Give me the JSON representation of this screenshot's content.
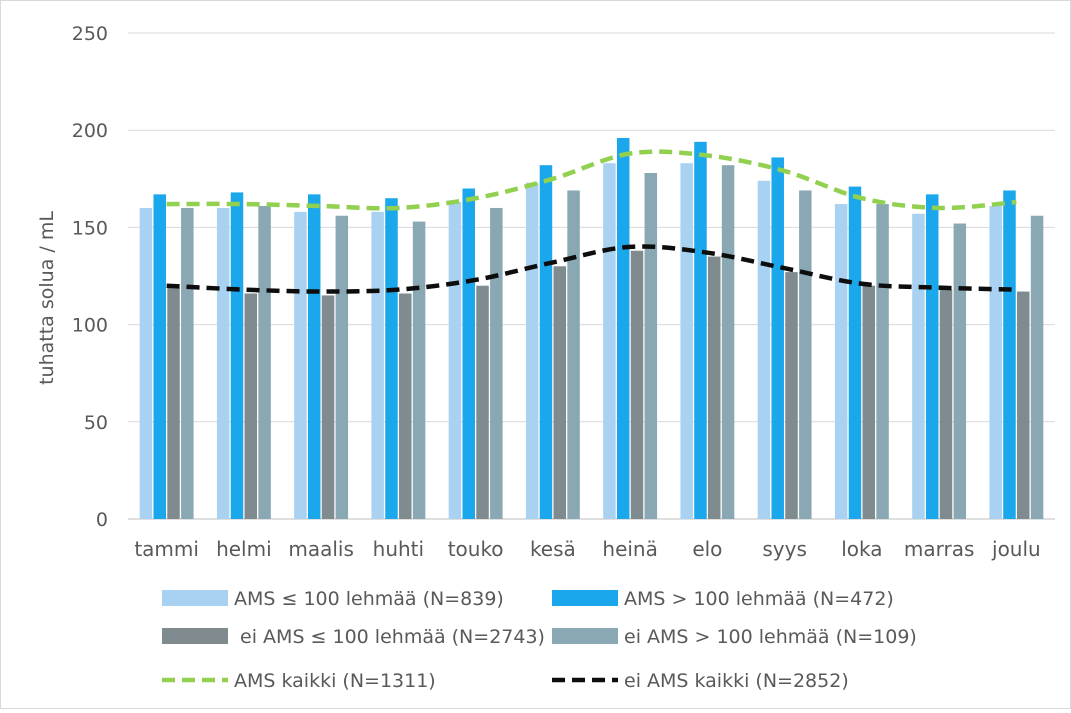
{
  "chart_data": {
    "type": "bar",
    "title": "",
    "xlabel": "",
    "ylabel": "tuhatta solua / mL",
    "ylim": [
      0,
      250
    ],
    "yticks": [
      0,
      50,
      100,
      150,
      200,
      250
    ],
    "grid": true,
    "legend_position": "bottom",
    "categories": [
      "tammi",
      "helmi",
      "maalis",
      "huhti",
      "touko",
      "kesä",
      "heinä",
      "elo",
      "syys",
      "loka",
      "marras",
      "joulu"
    ],
    "series": [
      {
        "name": "AMS ≤ 100 lehmää (N=839)",
        "kind": "bar",
        "color": "#a9d2f2",
        "values": [
          160,
          160,
          158,
          158,
          163,
          173,
          183,
          183,
          174,
          162,
          157,
          161
        ]
      },
      {
        "name": "AMS > 100 lehmää (N=472)",
        "kind": "bar",
        "color": "#1aa7ec",
        "values": [
          167,
          168,
          167,
          165,
          170,
          182,
          196,
          194,
          186,
          171,
          167,
          169
        ]
      },
      {
        "name": " ei AMS ≤ 100 lehmää (N=2743)",
        "kind": "bar",
        "color": "#7f8b8f",
        "values": [
          119,
          116,
          115,
          116,
          120,
          130,
          138,
          135,
          127,
          120,
          118,
          117
        ]
      },
      {
        "name": "ei AMS > 100 lehmää (N=109)",
        "kind": "bar",
        "color": "#89a8b4",
        "values": [
          160,
          161,
          156,
          153,
          160,
          169,
          178,
          182,
          169,
          162,
          152,
          156
        ]
      },
      {
        "name": "AMS kaikki (N=1311)",
        "kind": "line",
        "color": "#92d050",
        "values": [
          162,
          162,
          161,
          160,
          165,
          175,
          188,
          187,
          179,
          165,
          160,
          163
        ]
      },
      {
        "name": "ei AMS kaikki (N=2852)",
        "kind": "line",
        "color": "#0d0d0d",
        "values": [
          120,
          118,
          117,
          118,
          123,
          132,
          140,
          137,
          129,
          121,
          119,
          118
        ]
      }
    ]
  }
}
